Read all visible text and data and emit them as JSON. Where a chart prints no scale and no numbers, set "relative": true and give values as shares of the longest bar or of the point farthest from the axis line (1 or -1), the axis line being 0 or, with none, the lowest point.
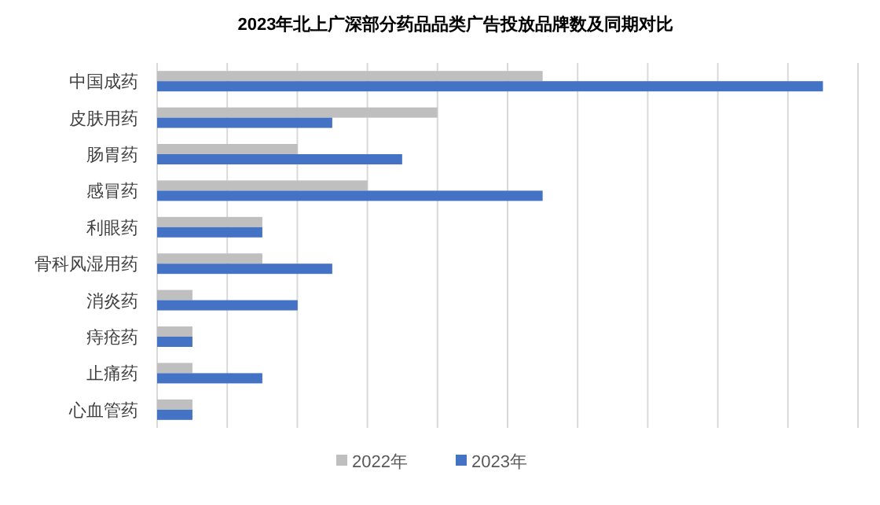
{
  "chart_data": {
    "type": "bar",
    "orientation": "horizontal",
    "relative": true,
    "title": "2023年北上广深部分药品品类广告投放品牌数及同期对比",
    "categories": [
      "中国成药",
      "皮肤用药",
      "肠胃药",
      "感冒药",
      "利眼药",
      "骨科风湿用药",
      "消炎药",
      "痔疮药",
      "止痛药",
      "心血管药"
    ],
    "series": [
      {
        "name": "2022年",
        "color": "#bfbfbf",
        "values": [
          0.579,
          0.421,
          0.211,
          0.316,
          0.158,
          0.158,
          0.053,
          0.053,
          0.053,
          0.053
        ]
      },
      {
        "name": "2023年",
        "color": "#4472c4",
        "values": [
          1,
          0.263,
          0.368,
          0.579,
          0.158,
          0.263,
          0.211,
          0.053,
          0.158,
          0.053
        ]
      }
    ],
    "grid": "x",
    "legend": "bottom"
  }
}
